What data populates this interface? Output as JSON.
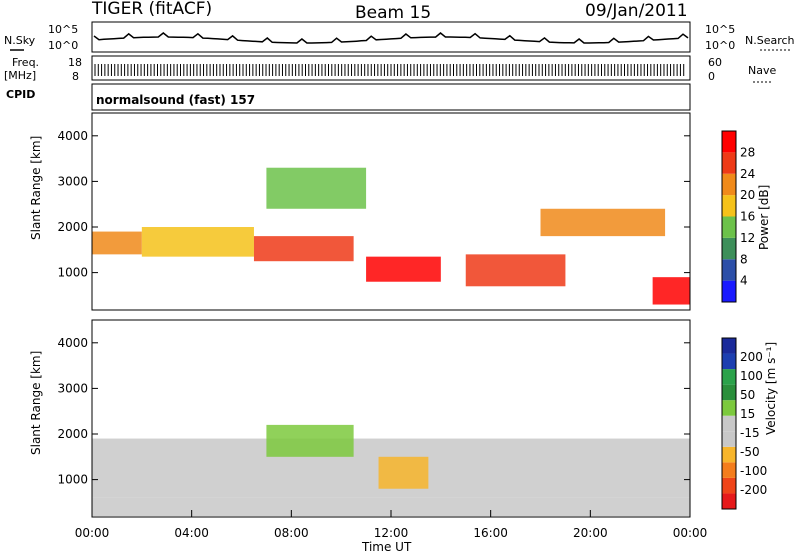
{
  "header": {
    "radar": "TIGER (fitACF)",
    "beam": "Beam 15",
    "date": "09/Jan/2011"
  },
  "strips": {
    "nsky_label": "N.Sky",
    "nsky_ticks": [
      "10^5",
      "10^0"
    ],
    "nsearch_label": "N.Search",
    "freq_label_1": "Freq.",
    "freq_label_2": "[MHz]",
    "freq_ticks": [
      "18",
      "8"
    ],
    "nave_ticks": [
      "60",
      "0"
    ],
    "nave_label": "Nave",
    "cpid_label": "CPID",
    "cpid_text": "normalsound (fast) 157"
  },
  "colors": {
    "power_scale": [
      "#1a1aff",
      "#2c4fa8",
      "#3d8f5a",
      "#6cc24a",
      "#f5c21a",
      "#f08a1a",
      "#ee3a17",
      "#ff0000"
    ],
    "velocity_scale": [
      "#e6191a",
      "#ef4418",
      "#f47d1c",
      "#f7b52b",
      "#c8c8c8",
      "#c8c8c8",
      "#7cc93d",
      "#2a8f3b",
      "#2ba24a",
      "#1c3fb0",
      "#1a2a9a"
    ]
  },
  "chart_data": [
    {
      "type": "heatmap",
      "parameter": "Power",
      "ylabel": "Slant Range [km]",
      "ylim": [
        180,
        4500
      ],
      "yticks": [
        "4000",
        "3000",
        "2000",
        "1000"
      ],
      "xlim": [
        0,
        24
      ],
      "colorbar_label": "Power [dB]",
      "colorbar_ticks": [
        "28",
        "24",
        "20",
        "16",
        "12",
        "8",
        "4"
      ],
      "features": [
        {
          "t0": 0.0,
          "t1": 2.0,
          "r0": 1400,
          "r1": 1900,
          "value": 20
        },
        {
          "t0": 2.0,
          "t1": 6.5,
          "r0": 1350,
          "r1": 2000,
          "value": 16
        },
        {
          "t0": 6.5,
          "t1": 10.5,
          "r0": 1250,
          "r1": 1800,
          "value": 24
        },
        {
          "t0": 11.0,
          "t1": 14.0,
          "r0": 800,
          "r1": 1350,
          "value": 28
        },
        {
          "t0": 15.0,
          "t1": 19.0,
          "r0": 700,
          "r1": 1400,
          "value": 26
        },
        {
          "t0": 22.5,
          "t1": 24.0,
          "r0": 300,
          "r1": 900,
          "value": 28
        },
        {
          "t0": 7.0,
          "t1": 11.0,
          "r0": 2400,
          "r1": 3300,
          "value": 12
        },
        {
          "t0": 18.0,
          "t1": 23.0,
          "r0": 1800,
          "r1": 2400,
          "value": 20
        }
      ]
    },
    {
      "type": "heatmap",
      "parameter": "Velocity",
      "ylabel": "Slant Range [km]",
      "ylim": [
        180,
        4500
      ],
      "yticks": [
        "4000",
        "3000",
        "2000",
        "1000"
      ],
      "xlim": [
        0,
        24
      ],
      "xlabel": "Time UT",
      "xticks": [
        "00:00",
        "04:00",
        "08:00",
        "12:00",
        "16:00",
        "20:00",
        "00:00"
      ],
      "colorbar_label": "Velocity [m s⁻¹]",
      "colorbar_ticks": [
        "200",
        "100",
        "50",
        "15",
        "-15",
        "-50",
        "-100",
        "-200"
      ],
      "features": [
        {
          "t0": 0.0,
          "t1": 24.0,
          "r0": 600,
          "r1": 1900,
          "value": 0
        },
        {
          "t0": 7.0,
          "t1": 10.5,
          "r0": 1500,
          "r1": 2200,
          "value": 60
        },
        {
          "t0": 11.5,
          "t1": 13.5,
          "r0": 800,
          "r1": 1500,
          "value": -70
        },
        {
          "t0": 0.0,
          "t1": 24.0,
          "r0": 200,
          "r1": 600,
          "value": -30
        }
      ]
    }
  ]
}
